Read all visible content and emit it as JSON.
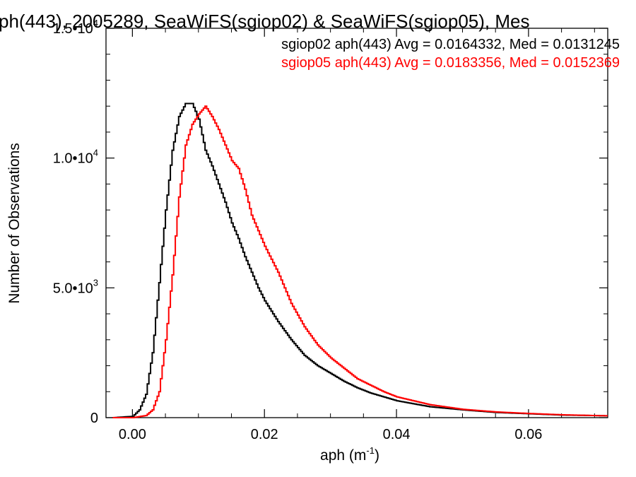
{
  "chart_data": {
    "type": "line",
    "title": "ph(443), 2005289, SeaWiFS(sgiop02) & SeaWiFS(sgiop05), Mes",
    "xlabel": "aph (m",
    "xlabel_sup": "-1",
    "xlabel_end": ")",
    "ylabel": "Number of Observations",
    "xlim": [
      -0.004,
      0.072
    ],
    "ylim": [
      0,
      15000
    ],
    "xticks": [
      0.0,
      0.02,
      0.04,
      0.06
    ],
    "xtick_labels": [
      "0.00",
      "0.02",
      "0.04",
      "0.06"
    ],
    "yticks": [
      0,
      5000,
      10000,
      15000
    ],
    "ytick_labels": [
      {
        "base": "0",
        "exp": ""
      },
      {
        "base": "5.0•10",
        "exp": "3"
      },
      {
        "base": "1.0•10",
        "exp": "4"
      },
      {
        "base": "1.5•10",
        "exp": "4"
      }
    ],
    "legend_position": "top-right",
    "series": [
      {
        "name": "sgiop02 aph(443) Avg = 0.0164332, Med = 0.0131245",
        "color": "#000000",
        "x": [
          -0.003,
          0.0,
          0.001,
          0.002,
          0.003,
          0.004,
          0.005,
          0.006,
          0.007,
          0.008,
          0.009,
          0.01,
          0.011,
          0.012,
          0.013,
          0.014,
          0.015,
          0.016,
          0.017,
          0.018,
          0.019,
          0.02,
          0.022,
          0.024,
          0.026,
          0.028,
          0.03,
          0.032,
          0.034,
          0.036,
          0.038,
          0.04,
          0.045,
          0.05,
          0.055,
          0.06,
          0.065,
          0.07,
          0.072
        ],
        "y": [
          0,
          50,
          300,
          900,
          2500,
          5200,
          8000,
          10300,
          11600,
          12100,
          12100,
          11500,
          10300,
          9700,
          9000,
          8300,
          7500,
          6900,
          6200,
          5600,
          5000,
          4500,
          3700,
          3000,
          2400,
          2000,
          1700,
          1400,
          1150,
          950,
          800,
          650,
          420,
          300,
          200,
          150,
          100,
          80,
          70
        ]
      },
      {
        "name": "sgiop05 aph(443) Avg = 0.0183356, Med = 0.0152369",
        "color": "#ff0000",
        "x": [
          -0.003,
          0.0,
          0.002,
          0.003,
          0.004,
          0.005,
          0.006,
          0.007,
          0.008,
          0.009,
          0.01,
          0.011,
          0.012,
          0.013,
          0.014,
          0.015,
          0.016,
          0.017,
          0.018,
          0.019,
          0.02,
          0.022,
          0.024,
          0.026,
          0.028,
          0.03,
          0.032,
          0.034,
          0.036,
          0.038,
          0.04,
          0.045,
          0.05,
          0.055,
          0.06,
          0.065,
          0.07,
          0.072
        ],
        "y": [
          0,
          0,
          80,
          300,
          1000,
          3000,
          5500,
          8500,
          10500,
          11300,
          11700,
          12000,
          11600,
          11100,
          10500,
          9900,
          9600,
          8800,
          7800,
          7200,
          6600,
          5600,
          4400,
          3500,
          2800,
          2300,
          1900,
          1500,
          1250,
          1000,
          800,
          500,
          320,
          220,
          160,
          110,
          80,
          70
        ]
      }
    ]
  }
}
